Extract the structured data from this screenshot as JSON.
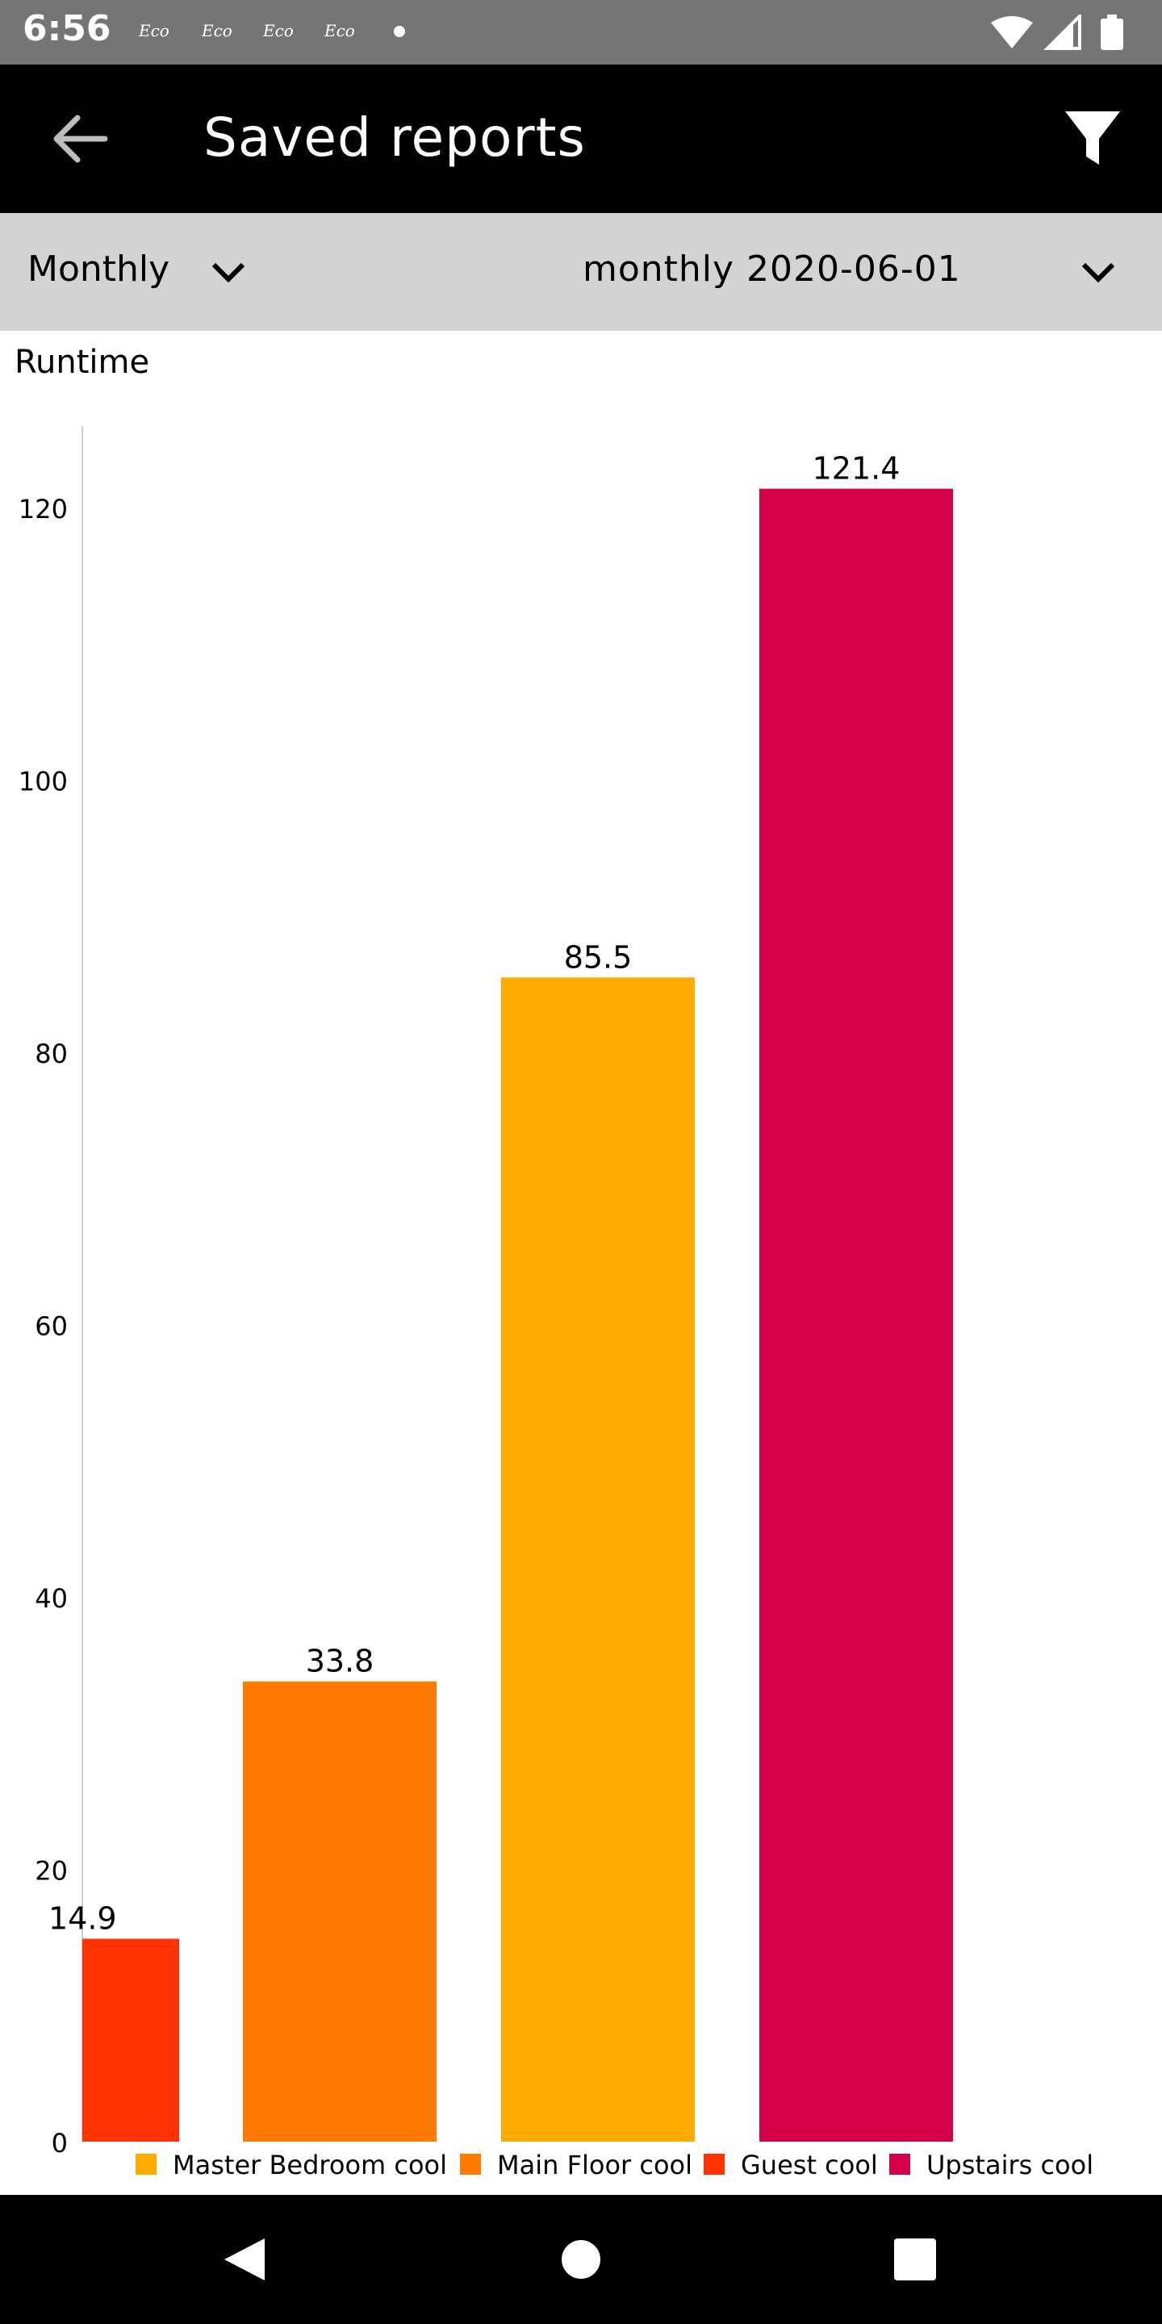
{
  "status_bar": {
    "time": "6:56",
    "eco_badges": [
      "Eco",
      "Eco",
      "Eco",
      "Eco"
    ]
  },
  "app_bar": {
    "title": "Saved reports"
  },
  "selectors": {
    "period": "Monthly",
    "report": "monthly 2020-06-01"
  },
  "chart_data": {
    "type": "bar",
    "title": "Runtime",
    "categories": [
      "Guest cool",
      "Main Floor cool",
      "Master Bedroom cool",
      "Upstairs cool"
    ],
    "values": [
      14.9,
      33.8,
      85.5,
      121.4
    ],
    "data_labels": [
      "14.9",
      "33.8",
      "85.5",
      "121.4"
    ],
    "colors": [
      "#ff3300",
      "#ff7a00",
      "#ffaa00",
      "#d4004a"
    ],
    "y_ticks": [
      0,
      20,
      40,
      60,
      80,
      100,
      120
    ],
    "ylim": [
      0,
      126
    ],
    "grid": false,
    "legend_position": "bottom",
    "legend": [
      {
        "name": "Master Bedroom cool",
        "color": "#ffaa00"
      },
      {
        "name": "Main Floor cool",
        "color": "#ff7a00"
      },
      {
        "name": "Guest cool",
        "color": "#ff3300"
      },
      {
        "name": "Upstairs cool",
        "color": "#d4004a"
      }
    ]
  },
  "theme": {
    "app_bar_bg": "#000000",
    "status_bar_bg": "#757575",
    "selector_bg": "#d3d3d3"
  }
}
